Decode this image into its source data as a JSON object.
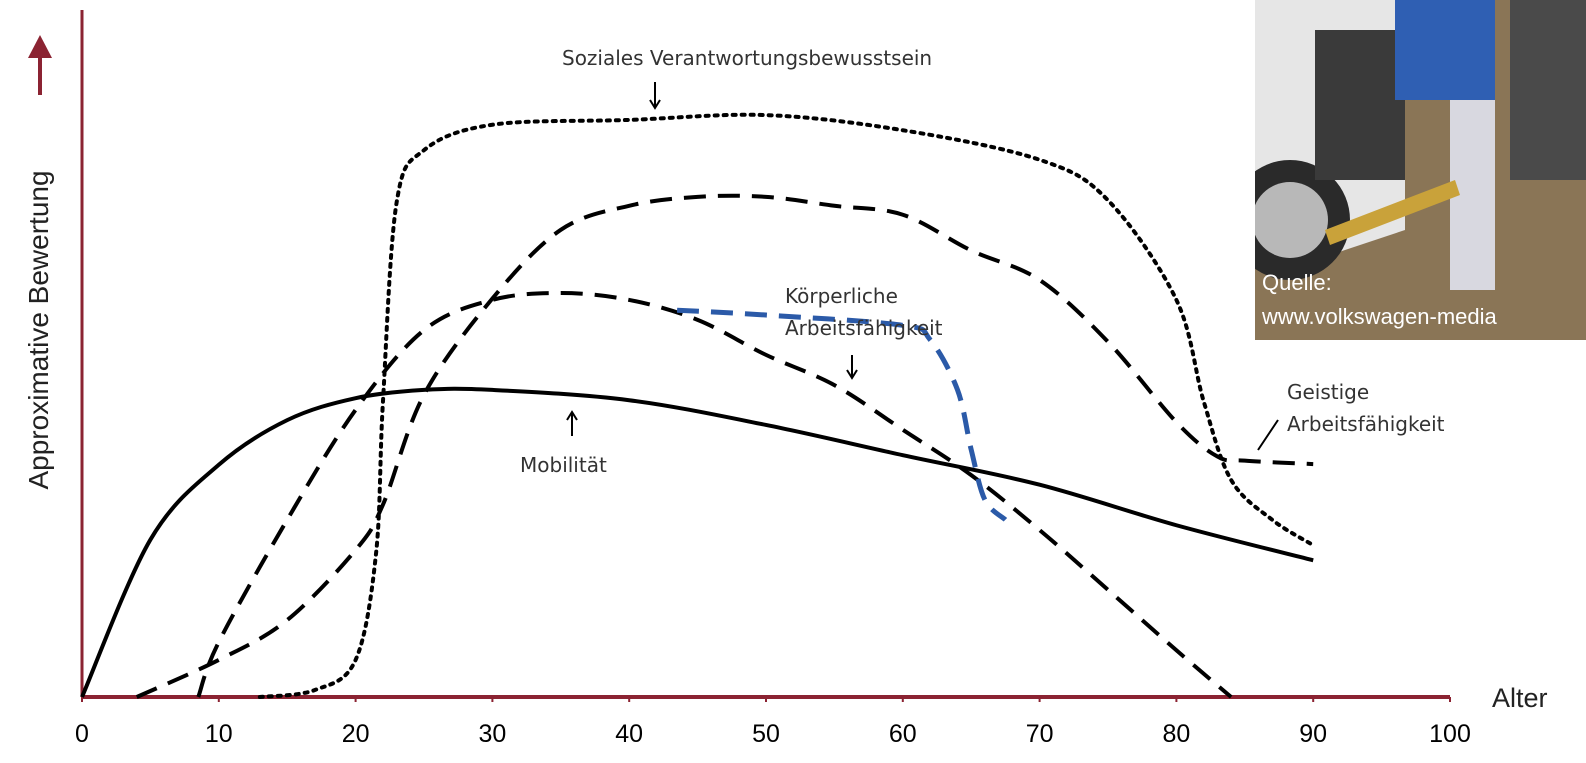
{
  "chart_data": {
    "type": "line",
    "ylabel": "Approximative Bewertung",
    "xlabel": "Alter",
    "xlim": [
      0,
      100
    ],
    "xticks": [
      0,
      10,
      20,
      30,
      40,
      50,
      60,
      70,
      80,
      90,
      100
    ],
    "ylim": [
      0,
      100
    ],
    "axis_color": "#8b2332",
    "series": [
      {
        "name": "Mobilität",
        "color": "#000000",
        "dash": "solid",
        "x": [
          0,
          5,
          10,
          15,
          20,
          25,
          30,
          40,
          50,
          60,
          70,
          80,
          90
        ],
        "values": [
          0,
          22.9,
          33.8,
          40.3,
          43.5,
          44.7,
          44.7,
          43.2,
          39.6,
          35.2,
          30.9,
          25.0,
          19.9
        ]
      },
      {
        "name": "Körperliche Arbeitsfähigkeit",
        "color": "#000000",
        "dash": "dashed",
        "x": [
          8.5,
          10,
          15,
          20,
          25,
          30,
          35,
          40,
          45,
          50,
          55,
          60,
          65,
          70,
          75,
          80,
          84
        ],
        "values": [
          0,
          8,
          25.8,
          41.8,
          53.4,
          57.8,
          58.8,
          57.8,
          54.9,
          49.8,
          45.4,
          38.9,
          32.3,
          24.3,
          15.6,
          6.8,
          0
        ]
      },
      {
        "name": "Geistige Arbeitsfähigkeit",
        "color": "#000000",
        "dash": "dashed",
        "x": [
          4,
          10,
          15,
          20,
          22,
          25,
          30,
          35,
          40,
          45,
          50,
          55,
          60,
          65,
          70,
          75,
          80,
          83,
          85,
          90
        ],
        "values": [
          0,
          5.4,
          11.2,
          21.4,
          28,
          44,
          58,
          68,
          71.5,
          72.8,
          72.8,
          71.5,
          70.2,
          65,
          60.7,
          51.7,
          40,
          35,
          34.4,
          33.9
        ]
      },
      {
        "name": "Soziales Verantwortungsbewusstsein",
        "color": "#000000",
        "dash": "dotted",
        "x": [
          13,
          17,
          20,
          21.5,
          22,
          23,
          25,
          30,
          40,
          50,
          60,
          70,
          75,
          80,
          82,
          84,
          87,
          90
        ],
        "values": [
          0,
          1,
          5.4,
          21,
          43,
          72,
          79.6,
          83.3,
          84,
          84.7,
          82.5,
          78.2,
          72.3,
          57.8,
          43,
          31.6,
          25.8,
          22.1
        ]
      },
      {
        "color": "#2b5aa8",
        "dash": "dashed",
        "x": [
          43.5,
          50,
          60,
          62,
          64,
          65,
          66,
          67.5
        ],
        "values": [
          56.3,
          55.6,
          54.1,
          52,
          44.7,
          36,
          28.7,
          25.8
        ]
      }
    ]
  },
  "image": {
    "caption": [
      "Quelle:",
      "www.volkswagen-media"
    ]
  }
}
